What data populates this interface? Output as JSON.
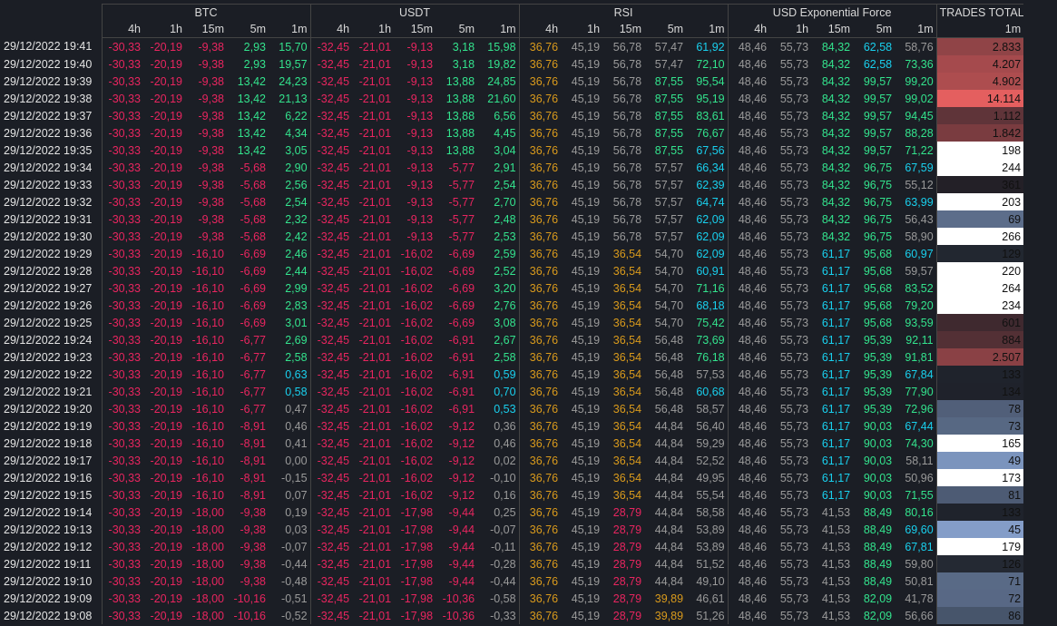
{
  "header": {
    "groups": [
      "BTC",
      "USDT",
      "RSI",
      "USD Exponential Force",
      "TRADES TOTAL"
    ],
    "subheaders": [
      "4h",
      "1h",
      "15m",
      "5m",
      "1m"
    ]
  },
  "table": {
    "rows": [
      [
        "29/12/2022 19:41",
        "-30,33",
        "-20,19",
        "-9,38",
        "2,93",
        "15,70",
        "-32,45",
        "-21,01",
        "-9,13",
        "3,18",
        "15,98",
        "36,76",
        "45,19",
        "56,78",
        "57,47",
        "61,92",
        "48,46",
        "55,73",
        "84,32",
        "62,58",
        "58,76",
        "2.833"
      ],
      [
        "29/12/2022 19:40",
        "-30,33",
        "-20,19",
        "-9,38",
        "2,93",
        "19,57",
        "-32,45",
        "-21,01",
        "-9,13",
        "3,18",
        "19,82",
        "36,76",
        "45,19",
        "56,78",
        "57,47",
        "72,10",
        "48,46",
        "55,73",
        "84,32",
        "62,58",
        "73,36",
        "4.207"
      ],
      [
        "29/12/2022 19:39",
        "-30,33",
        "-20,19",
        "-9,38",
        "13,42",
        "24,23",
        "-32,45",
        "-21,01",
        "-9,13",
        "13,88",
        "24,85",
        "36,76",
        "45,19",
        "56,78",
        "87,55",
        "95,54",
        "48,46",
        "55,73",
        "84,32",
        "99,57",
        "99,20",
        "4.902"
      ],
      [
        "29/12/2022 19:38",
        "-30,33",
        "-20,19",
        "-9,38",
        "13,42",
        "21,13",
        "-32,45",
        "-21,01",
        "-9,13",
        "13,88",
        "21,60",
        "36,76",
        "45,19",
        "56,78",
        "87,55",
        "95,19",
        "48,46",
        "55,73",
        "84,32",
        "99,57",
        "99,02",
        "14.114"
      ],
      [
        "29/12/2022 19:37",
        "-30,33",
        "-20,19",
        "-9,38",
        "13,42",
        "6,22",
        "-32,45",
        "-21,01",
        "-9,13",
        "13,88",
        "6,56",
        "36,76",
        "45,19",
        "56,78",
        "87,55",
        "83,61",
        "48,46",
        "55,73",
        "84,32",
        "99,57",
        "94,45",
        "1.112"
      ],
      [
        "29/12/2022 19:36",
        "-30,33",
        "-20,19",
        "-9,38",
        "13,42",
        "4,34",
        "-32,45",
        "-21,01",
        "-9,13",
        "13,88",
        "4,45",
        "36,76",
        "45,19",
        "56,78",
        "87,55",
        "76,67",
        "48,46",
        "55,73",
        "84,32",
        "99,57",
        "88,28",
        "1.842"
      ],
      [
        "29/12/2022 19:35",
        "-30,33",
        "-20,19",
        "-9,38",
        "13,42",
        "3,05",
        "-32,45",
        "-21,01",
        "-9,13",
        "13,88",
        "3,04",
        "36,76",
        "45,19",
        "56,78",
        "87,55",
        "67,56",
        "48,46",
        "55,73",
        "84,32",
        "99,57",
        "71,22",
        "198"
      ],
      [
        "29/12/2022 19:34",
        "-30,33",
        "-20,19",
        "-9,38",
        "-5,68",
        "2,90",
        "-32,45",
        "-21,01",
        "-9,13",
        "-5,77",
        "2,91",
        "36,76",
        "45,19",
        "56,78",
        "57,57",
        "66,34",
        "48,46",
        "55,73",
        "84,32",
        "96,75",
        "67,59",
        "244"
      ],
      [
        "29/12/2022 19:33",
        "-30,33",
        "-20,19",
        "-9,38",
        "-5,68",
        "2,56",
        "-32,45",
        "-21,01",
        "-9,13",
        "-5,77",
        "2,54",
        "36,76",
        "45,19",
        "56,78",
        "57,57",
        "62,39",
        "48,46",
        "55,73",
        "84,32",
        "96,75",
        "55,12",
        "361"
      ],
      [
        "29/12/2022 19:32",
        "-30,33",
        "-20,19",
        "-9,38",
        "-5,68",
        "2,54",
        "-32,45",
        "-21,01",
        "-9,13",
        "-5,77",
        "2,70",
        "36,76",
        "45,19",
        "56,78",
        "57,57",
        "64,74",
        "48,46",
        "55,73",
        "84,32",
        "96,75",
        "63,99",
        "203"
      ],
      [
        "29/12/2022 19:31",
        "-30,33",
        "-20,19",
        "-9,38",
        "-5,68",
        "2,32",
        "-32,45",
        "-21,01",
        "-9,13",
        "-5,77",
        "2,48",
        "36,76",
        "45,19",
        "56,78",
        "57,57",
        "62,09",
        "48,46",
        "55,73",
        "84,32",
        "96,75",
        "56,43",
        "69"
      ],
      [
        "29/12/2022 19:30",
        "-30,33",
        "-20,19",
        "-9,38",
        "-5,68",
        "2,42",
        "-32,45",
        "-21,01",
        "-9,13",
        "-5,77",
        "2,53",
        "36,76",
        "45,19",
        "56,78",
        "57,57",
        "62,09",
        "48,46",
        "55,73",
        "84,32",
        "96,75",
        "58,90",
        "266"
      ],
      [
        "29/12/2022 19:29",
        "-30,33",
        "-20,19",
        "-16,10",
        "-6,69",
        "2,46",
        "-32,45",
        "-21,01",
        "-16,02",
        "-6,69",
        "2,59",
        "36,76",
        "45,19",
        "36,54",
        "54,70",
        "62,09",
        "48,46",
        "55,73",
        "61,17",
        "95,68",
        "60,97",
        "129"
      ],
      [
        "29/12/2022 19:28",
        "-30,33",
        "-20,19",
        "-16,10",
        "-6,69",
        "2,44",
        "-32,45",
        "-21,01",
        "-16,02",
        "-6,69",
        "2,52",
        "36,76",
        "45,19",
        "36,54",
        "54,70",
        "60,91",
        "48,46",
        "55,73",
        "61,17",
        "95,68",
        "59,57",
        "220"
      ],
      [
        "29/12/2022 19:27",
        "-30,33",
        "-20,19",
        "-16,10",
        "-6,69",
        "2,99",
        "-32,45",
        "-21,01",
        "-16,02",
        "-6,69",
        "3,20",
        "36,76",
        "45,19",
        "36,54",
        "54,70",
        "71,16",
        "48,46",
        "55,73",
        "61,17",
        "95,68",
        "83,52",
        "264"
      ],
      [
        "29/12/2022 19:26",
        "-30,33",
        "-20,19",
        "-16,10",
        "-6,69",
        "2,83",
        "-32,45",
        "-21,01",
        "-16,02",
        "-6,69",
        "2,76",
        "36,76",
        "45,19",
        "36,54",
        "54,70",
        "68,18",
        "48,46",
        "55,73",
        "61,17",
        "95,68",
        "79,20",
        "234"
      ],
      [
        "29/12/2022 19:25",
        "-30,33",
        "-20,19",
        "-16,10",
        "-6,69",
        "3,01",
        "-32,45",
        "-21,01",
        "-16,02",
        "-6,69",
        "3,08",
        "36,76",
        "45,19",
        "36,54",
        "54,70",
        "75,42",
        "48,46",
        "55,73",
        "61,17",
        "95,68",
        "93,59",
        "601"
      ],
      [
        "29/12/2022 19:24",
        "-30,33",
        "-20,19",
        "-16,10",
        "-6,77",
        "2,69",
        "-32,45",
        "-21,01",
        "-16,02",
        "-6,91",
        "2,67",
        "36,76",
        "45,19",
        "36,54",
        "56,48",
        "73,69",
        "48,46",
        "55,73",
        "61,17",
        "95,39",
        "92,11",
        "884"
      ],
      [
        "29/12/2022 19:23",
        "-30,33",
        "-20,19",
        "-16,10",
        "-6,77",
        "2,58",
        "-32,45",
        "-21,01",
        "-16,02",
        "-6,91",
        "2,58",
        "36,76",
        "45,19",
        "36,54",
        "56,48",
        "76,18",
        "48,46",
        "55,73",
        "61,17",
        "95,39",
        "91,81",
        "2.507"
      ],
      [
        "29/12/2022 19:22",
        "-30,33",
        "-20,19",
        "-16,10",
        "-6,77",
        "0,63",
        "-32,45",
        "-21,01",
        "-16,02",
        "-6,91",
        "0,59",
        "36,76",
        "45,19",
        "36,54",
        "56,48",
        "57,53",
        "48,46",
        "55,73",
        "61,17",
        "95,39",
        "67,84",
        "133"
      ],
      [
        "29/12/2022 19:21",
        "-30,33",
        "-20,19",
        "-16,10",
        "-6,77",
        "0,58",
        "-32,45",
        "-21,01",
        "-16,02",
        "-6,91",
        "0,70",
        "36,76",
        "45,19",
        "36,54",
        "56,48",
        "60,68",
        "48,46",
        "55,73",
        "61,17",
        "95,39",
        "77,90",
        "134"
      ],
      [
        "29/12/2022 19:20",
        "-30,33",
        "-20,19",
        "-16,10",
        "-6,77",
        "0,47",
        "-32,45",
        "-21,01",
        "-16,02",
        "-6,91",
        "0,53",
        "36,76",
        "45,19",
        "36,54",
        "56,48",
        "58,57",
        "48,46",
        "55,73",
        "61,17",
        "95,39",
        "72,96",
        "78"
      ],
      [
        "29/12/2022 19:19",
        "-30,33",
        "-20,19",
        "-16,10",
        "-8,91",
        "0,46",
        "-32,45",
        "-21,01",
        "-16,02",
        "-9,12",
        "0,36",
        "36,76",
        "45,19",
        "36,54",
        "44,84",
        "56,40",
        "48,46",
        "55,73",
        "61,17",
        "90,03",
        "67,44",
        "73"
      ],
      [
        "29/12/2022 19:18",
        "-30,33",
        "-20,19",
        "-16,10",
        "-8,91",
        "0,41",
        "-32,45",
        "-21,01",
        "-16,02",
        "-9,12",
        "0,46",
        "36,76",
        "45,19",
        "36,54",
        "44,84",
        "59,29",
        "48,46",
        "55,73",
        "61,17",
        "90,03",
        "74,30",
        "165"
      ],
      [
        "29/12/2022 19:17",
        "-30,33",
        "-20,19",
        "-16,10",
        "-8,91",
        "0,00",
        "-32,45",
        "-21,01",
        "-16,02",
        "-9,12",
        "0,02",
        "36,76",
        "45,19",
        "36,54",
        "44,84",
        "52,52",
        "48,46",
        "55,73",
        "61,17",
        "90,03",
        "58,11",
        "49"
      ],
      [
        "29/12/2022 19:16",
        "-30,33",
        "-20,19",
        "-16,10",
        "-8,91",
        "-0,15",
        "-32,45",
        "-21,01",
        "-16,02",
        "-9,12",
        "-0,10",
        "36,76",
        "45,19",
        "36,54",
        "44,84",
        "49,95",
        "48,46",
        "55,73",
        "61,17",
        "90,03",
        "50,96",
        "173"
      ],
      [
        "29/12/2022 19:15",
        "-30,33",
        "-20,19",
        "-16,10",
        "-8,91",
        "0,07",
        "-32,45",
        "-21,01",
        "-16,02",
        "-9,12",
        "0,16",
        "36,76",
        "45,19",
        "36,54",
        "44,84",
        "55,54",
        "48,46",
        "55,73",
        "61,17",
        "90,03",
        "71,55",
        "81"
      ],
      [
        "29/12/2022 19:14",
        "-30,33",
        "-20,19",
        "-18,00",
        "-9,38",
        "0,19",
        "-32,45",
        "-21,01",
        "-17,98",
        "-9,44",
        "0,25",
        "36,76",
        "45,19",
        "28,79",
        "44,84",
        "58,58",
        "48,46",
        "55,73",
        "41,53",
        "88,49",
        "80,16",
        "133"
      ],
      [
        "29/12/2022 19:13",
        "-30,33",
        "-20,19",
        "-18,00",
        "-9,38",
        "0,03",
        "-32,45",
        "-21,01",
        "-17,98",
        "-9,44",
        "-0,07",
        "36,76",
        "45,19",
        "28,79",
        "44,84",
        "53,89",
        "48,46",
        "55,73",
        "41,53",
        "88,49",
        "69,60",
        "45"
      ],
      [
        "29/12/2022 19:12",
        "-30,33",
        "-20,19",
        "-18,00",
        "-9,38",
        "-0,07",
        "-32,45",
        "-21,01",
        "-17,98",
        "-9,44",
        "-0,11",
        "36,76",
        "45,19",
        "28,79",
        "44,84",
        "53,89",
        "48,46",
        "55,73",
        "41,53",
        "88,49",
        "67,81",
        "179"
      ],
      [
        "29/12/2022 19:11",
        "-30,33",
        "-20,19",
        "-18,00",
        "-9,38",
        "-0,44",
        "-32,45",
        "-21,01",
        "-17,98",
        "-9,44",
        "-0,28",
        "36,76",
        "45,19",
        "28,79",
        "44,84",
        "51,52",
        "48,46",
        "55,73",
        "41,53",
        "88,49",
        "59,80",
        "126"
      ],
      [
        "29/12/2022 19:10",
        "-30,33",
        "-20,19",
        "-18,00",
        "-9,38",
        "-0,48",
        "-32,45",
        "-21,01",
        "-17,98",
        "-9,44",
        "-0,44",
        "36,76",
        "45,19",
        "28,79",
        "44,84",
        "49,10",
        "48,46",
        "55,73",
        "41,53",
        "88,49",
        "50,81",
        "71"
      ],
      [
        "29/12/2022 19:09",
        "-30,33",
        "-20,19",
        "-18,00",
        "-10,16",
        "-0,51",
        "-32,45",
        "-21,01",
        "-17,98",
        "-10,36",
        "-0,58",
        "36,76",
        "45,19",
        "28,79",
        "39,89",
        "46,61",
        "48,46",
        "55,73",
        "41,53",
        "82,09",
        "41,78",
        "72"
      ],
      [
        "29/12/2022 19:08",
        "-30,33",
        "-20,19",
        "-18,00",
        "-10,16",
        "-0,52",
        "-32,45",
        "-21,01",
        "-17,98",
        "-10,36",
        "-0,33",
        "36,76",
        "45,19",
        "28,79",
        "39,89",
        "51,26",
        "48,46",
        "55,73",
        "41,53",
        "82,09",
        "56,66",
        "86"
      ]
    ]
  }
}
